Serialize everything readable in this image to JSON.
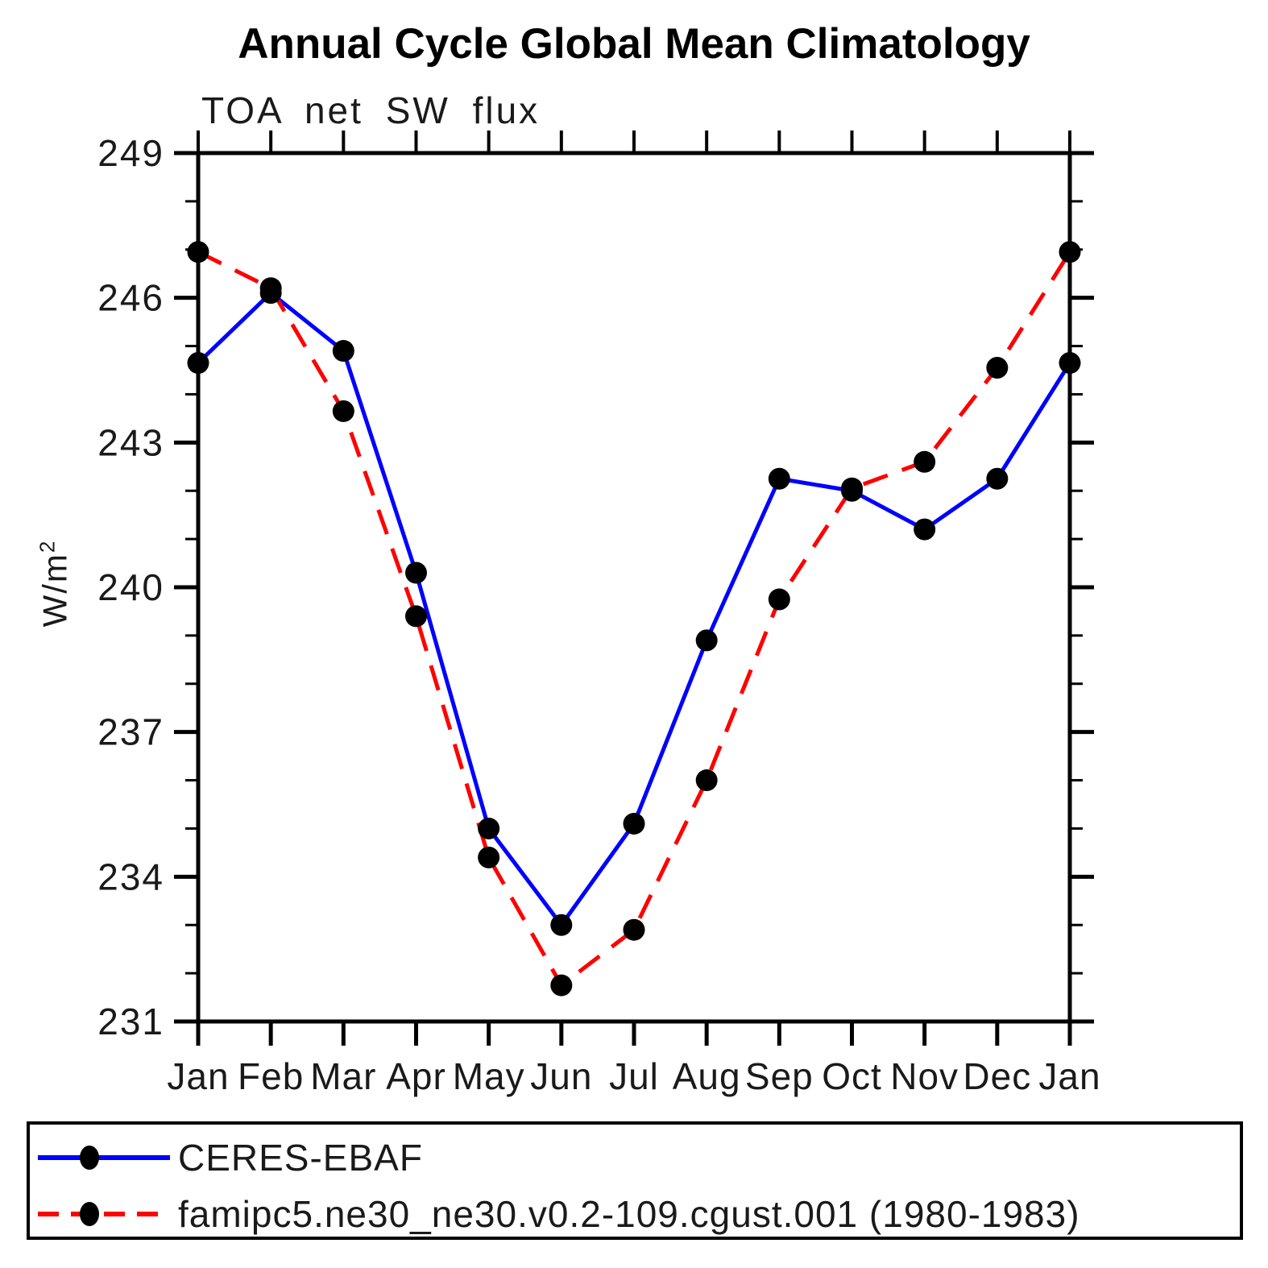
{
  "chart_data": {
    "type": "line",
    "title": "Annual Cycle Global Mean Climatology",
    "subtitle": "TOA net SW flux",
    "ylabel": "W/m²",
    "ylabel_base": "W/m",
    "ylabel_exponent": "2",
    "xlabel": "",
    "categories": [
      "Jan",
      "Feb",
      "Mar",
      "Apr",
      "May",
      "Jun",
      "Jul",
      "Aug",
      "Sep",
      "Oct",
      "Nov",
      "Dec",
      "Jan"
    ],
    "ylim": [
      231,
      249
    ],
    "ytick_major_interval": 3,
    "ytick_minor_interval": 1,
    "ytick_major_labels": [
      "231",
      "234",
      "237",
      "240",
      "243",
      "246",
      "249"
    ],
    "grid": false,
    "legend_position": "bottom-left-box",
    "marker": "filled-circle",
    "marker_color": "#000000",
    "series": [
      {
        "name": "CERES-EBAF",
        "color": "#0000ff",
        "style": "solid",
        "values": [
          244.65,
          246.1,
          244.9,
          240.3,
          235.0,
          233.0,
          235.1,
          238.9,
          242.25,
          242.0,
          241.2,
          242.25,
          244.65
        ]
      },
      {
        "name": "famipc5.ne30_ne30.v0.2-109.cgust.001 (1980-1983)",
        "color": "#ff0000",
        "style": "dashed",
        "values": [
          246.95,
          246.2,
          243.65,
          239.4,
          234.4,
          231.75,
          232.9,
          236.0,
          239.75,
          242.05,
          242.6,
          244.55,
          246.95
        ]
      }
    ]
  }
}
